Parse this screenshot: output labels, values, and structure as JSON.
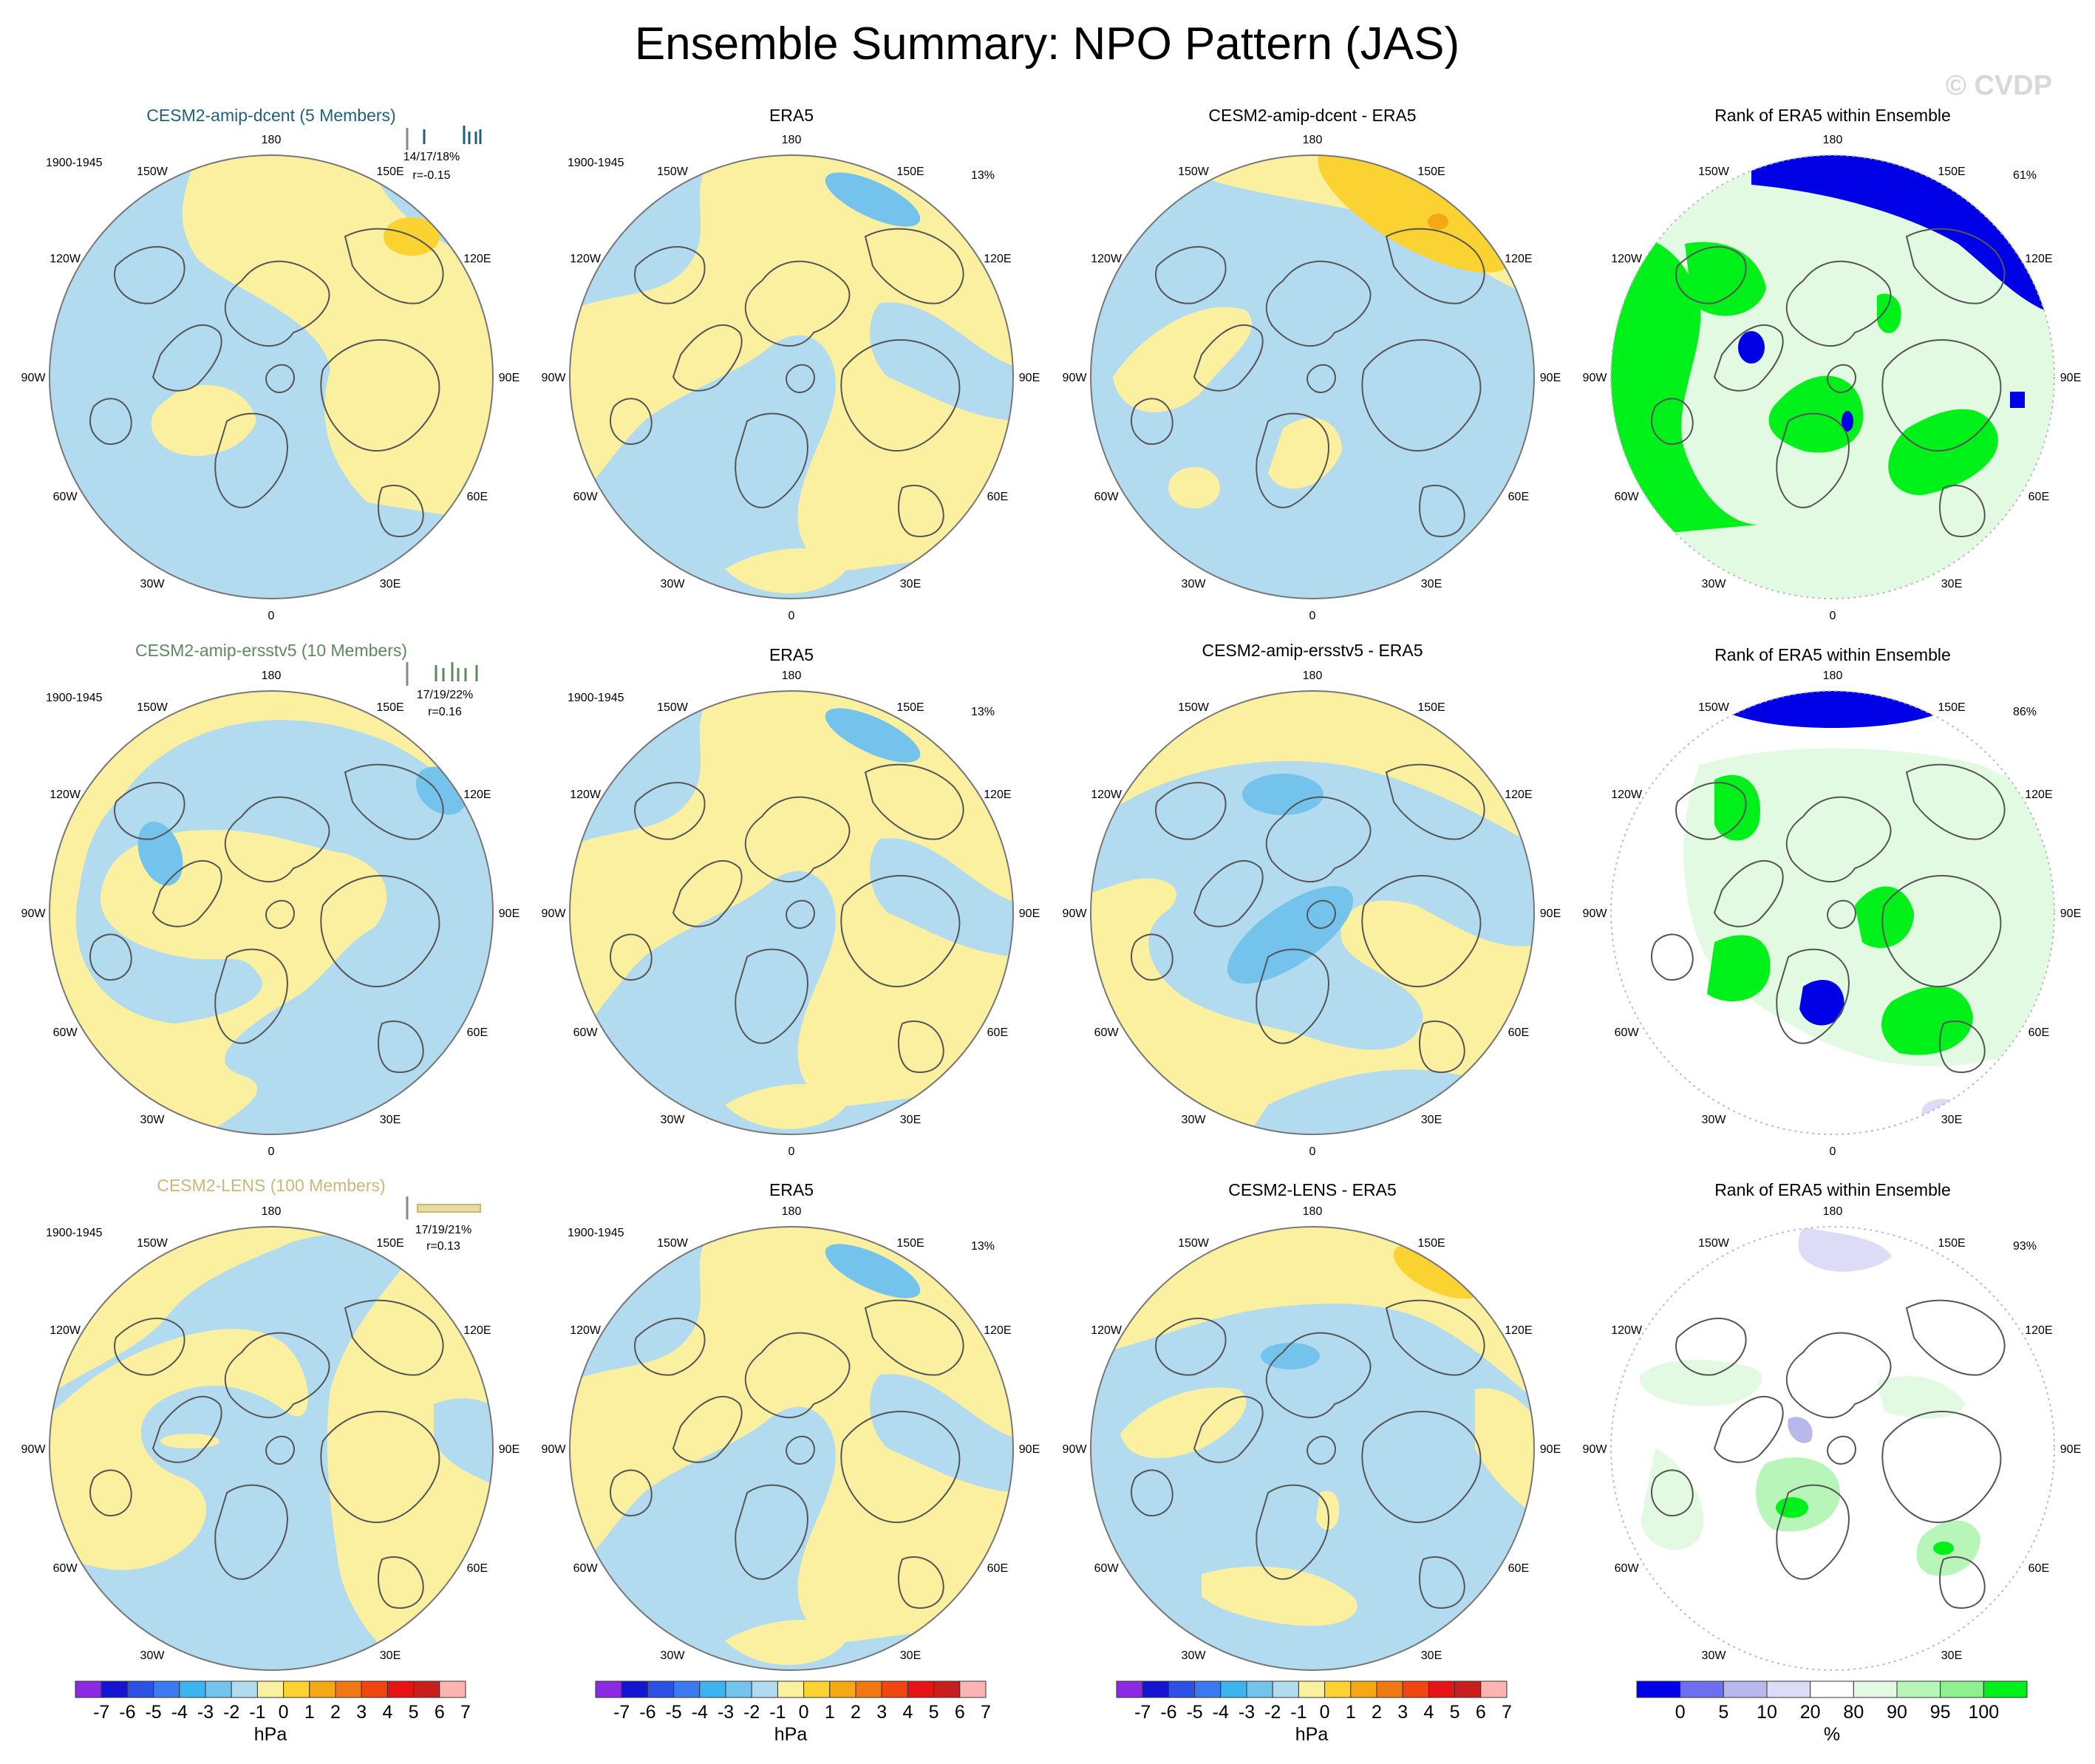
{
  "title": "Ensemble Summary: NPO Pattern (JAS)",
  "watermark": "© CVDP",
  "colors": {
    "land_outline": "#555555",
    "circle_outline": "#777777",
    "neg1": "#b3dbef",
    "neg2": "#73c3ec",
    "pos1": "#fbf0a0",
    "pos2": "#fad232",
    "pos3": "#f5a814",
    "rank_low": "#0000e6",
    "rank_low2": "#b8b8ec",
    "rank_low3": "#dcdcf6",
    "rank_high": "#00f01a",
    "rank_high2": "#8ef08e",
    "rank_high3": "#e2fae2"
  },
  "longitude_labels": [
    "180",
    "150E",
    "120E",
    "90E",
    "60E",
    "30E",
    "0",
    "30W",
    "60W",
    "90W",
    "120W",
    "150W"
  ],
  "rows": [
    {
      "ensemble": {
        "title": "CESM2-amip-dcent (5 Members)",
        "title_color": "#1f5f7f",
        "period": "1900-1945",
        "stats": "14/17/18%",
        "corr": "r=-0.15"
      },
      "era5": {
        "title": "ERA5",
        "period": "1900-1945",
        "pct": "13%"
      },
      "diff": {
        "title": "CESM2-amip-dcent - ERA5"
      },
      "rank": {
        "title": "Rank of ERA5 within Ensemble",
        "pct": "61%"
      }
    },
    {
      "ensemble": {
        "title": "CESM2-amip-ersstv5 (10 Members)",
        "title_color": "#5f875f",
        "period": "1900-1945",
        "stats": "17/19/22%",
        "corr": "r=0.16"
      },
      "era5": {
        "title": "ERA5",
        "period": "1900-1945",
        "pct": "13%"
      },
      "diff": {
        "title": "CESM2-amip-ersstv5 - ERA5"
      },
      "rank": {
        "title": "Rank of ERA5 within Ensemble",
        "pct": "86%"
      }
    },
    {
      "ensemble": {
        "title": "CESM2-LENS (100 Members)",
        "title_color": "#c8b878",
        "period": "1900-1945",
        "stats": "17/19/21%",
        "corr": "r=0.13"
      },
      "era5": {
        "title": "ERA5",
        "period": "1900-1945",
        "pct": "13%"
      },
      "diff": {
        "title": "CESM2-LENS - ERA5"
      },
      "rank": {
        "title": "Rank of ERA5 within Ensemble",
        "pct": "93%"
      }
    }
  ],
  "chart_data": {
    "type": "heatmap",
    "title": "Ensemble Summary: NPO Pattern (JAS)",
    "projection": "polar stereographic, Northern Hemisphere",
    "slp_colorbar": {
      "labels": [
        "-7",
        "-6",
        "-5",
        "-4",
        "-3",
        "-2",
        "-1",
        "0",
        "1",
        "2",
        "3",
        "4",
        "5",
        "6",
        "7"
      ],
      "colors": [
        "#8a2be2",
        "#1414d2",
        "#2d50e6",
        "#3c78f0",
        "#3cb4f0",
        "#73c3ec",
        "#b3dbef",
        "#fbf0a0",
        "#fad232",
        "#f5a814",
        "#f07814",
        "#f04614",
        "#e61414",
        "#c81e1e",
        "#ffb4b4"
      ],
      "units": "hPa"
    },
    "rank_colorbar": {
      "labels": [
        "0",
        "5",
        "10",
        "20",
        "80",
        "90",
        "95",
        "100"
      ],
      "colors": [
        "#0000e6",
        "#6e6ef0",
        "#b8b8ec",
        "#dcdcf6",
        "#ffffff",
        "#e2fae2",
        "#b8f5b8",
        "#8ef08e",
        "#00f01a"
      ],
      "units": "%"
    }
  }
}
